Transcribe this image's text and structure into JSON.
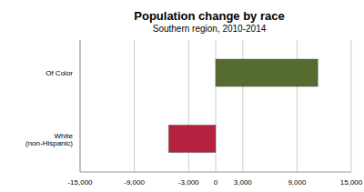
{
  "chart_data": {
    "type": "bar",
    "title": "Population change by race",
    "subtitle": "Southern region, 2010-2014",
    "orientation": "horizontal",
    "categories": [
      "Of Color",
      "White (non-Hispanic)"
    ],
    "values": [
      11300,
      -5200
    ],
    "colors": [
      "#556b2f",
      "#b5223f"
    ],
    "xlim": [
      -15000,
      15000
    ],
    "xticks": [
      {
        "value": -15000,
        "label": "-15,000"
      },
      {
        "value": -9000,
        "label": "-9,000"
      },
      {
        "value": -3000,
        "label": "-3,000"
      },
      0,
      {
        "value": 3000,
        "label": "3,000"
      },
      {
        "value": 9000,
        "label": "9,000"
      },
      {
        "value": 15000,
        "label": "15,000"
      }
    ],
    "grid": true
  }
}
